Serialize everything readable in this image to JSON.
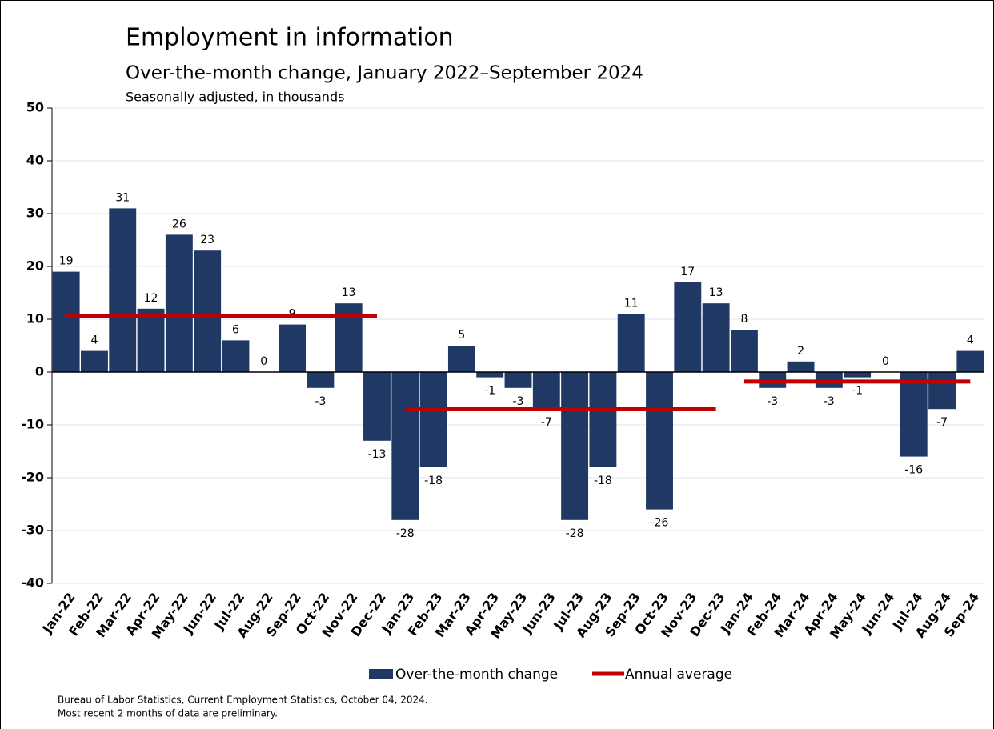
{
  "chart_data": {
    "type": "bar",
    "title": "Employment in information",
    "subtitle": "Over-the-month change, January 2022–September 2024",
    "note": "Seasonally adjusted, in thousands",
    "categories": [
      "Jan-22",
      "Feb-22",
      "Mar-22",
      "Apr-22",
      "May-22",
      "Jun-22",
      "Jul-22",
      "Aug-22",
      "Sep-22",
      "Oct-22",
      "Nov-22",
      "Dec-22",
      "Jan-23",
      "Feb-23",
      "Mar-23",
      "Apr-23",
      "May-23",
      "Jun-23",
      "Jul-23",
      "Aug-23",
      "Sep-23",
      "Oct-23",
      "Nov-23",
      "Dec-23",
      "Jan-24",
      "Feb-24",
      "Mar-24",
      "Apr-24",
      "May-24",
      "Jun-24",
      "Jul-24",
      "Aug-24",
      "Sep-24"
    ],
    "series": [
      {
        "name": "Over-the-month change",
        "color": "#203864",
        "values": [
          19,
          4,
          31,
          12,
          26,
          23,
          6,
          0,
          9,
          -3,
          13,
          -13,
          -28,
          -18,
          5,
          -1,
          -3,
          -7,
          -28,
          -18,
          11,
          -26,
          17,
          13,
          8,
          -3,
          2,
          -3,
          -1,
          0,
          -16,
          -7,
          4
        ]
      }
    ],
    "annual_average": {
      "name": "Annual average",
      "color": "#c00000",
      "segments": [
        {
          "start": "Jan-22",
          "end": "Dec-22",
          "value": 10.6
        },
        {
          "start": "Jan-23",
          "end": "Dec-23",
          "value": -6.9
        },
        {
          "start": "Jan-24",
          "end": "Sep-24",
          "value": -1.8
        }
      ]
    },
    "ylim": [
      -40,
      50
    ],
    "yticks": [
      -40,
      -30,
      -20,
      -10,
      0,
      10,
      20,
      30,
      40,
      50
    ],
    "grid": true,
    "source": "Bureau of Labor Statistics, Current Employment Statistics, October 04, 2024.",
    "footnote": "Most recent 2 months of data are preliminary."
  }
}
